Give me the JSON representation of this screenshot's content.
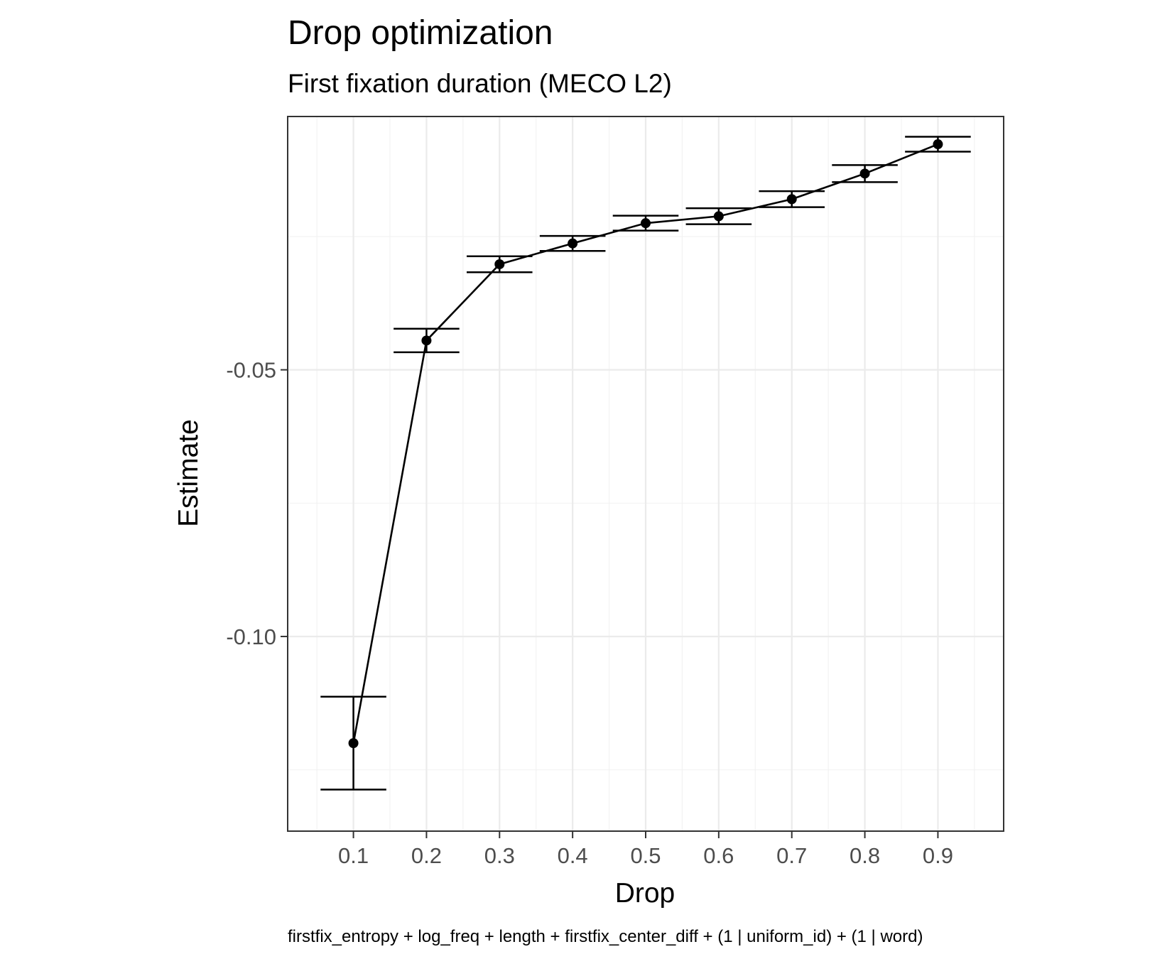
{
  "chart_data": {
    "type": "line",
    "title": "Drop optimization",
    "subtitle": "First fixation duration (MECO L2)",
    "xlabel": "Drop",
    "ylabel": "Estimate",
    "caption": "firstfix_entropy + log_freq + length + firstfix_center_diff + (1 | uniform_id) + (1 | word)",
    "x": [
      0.1,
      0.2,
      0.3,
      0.4,
      0.5,
      0.6,
      0.7,
      0.8,
      0.9
    ],
    "x_tick_labels": [
      "0.1",
      "0.2",
      "0.3",
      "0.4",
      "0.5",
      "0.6",
      "0.7",
      "0.8",
      "0.9"
    ],
    "series": [
      {
        "values": [
          -0.12,
          -0.0445,
          -0.0302,
          -0.0263,
          -0.0225,
          -0.0212,
          -0.018,
          -0.0132,
          -0.0077
        ],
        "ci_lower": [
          -0.1287,
          -0.0467,
          -0.0317,
          -0.0277,
          -0.0239,
          -0.0227,
          -0.0195,
          -0.0148,
          -0.0091
        ],
        "ci_upper": [
          -0.1113,
          -0.0423,
          -0.0287,
          -0.0249,
          -0.0211,
          -0.0197,
          -0.0165,
          -0.0116,
          -0.0063
        ]
      }
    ],
    "y_ticks": [
      -0.05,
      -0.1
    ],
    "y_tick_labels": [
      "-0.05",
      "-0.10"
    ],
    "xlim": [
      0.01,
      0.99
    ],
    "ylim": [
      -0.1365,
      -0.0025
    ],
    "grid": true,
    "theme": "bw",
    "colors": {
      "line": "#000000",
      "grid_major": "#ebebeb",
      "grid_minor": "#f2f2f2",
      "panel_border": "#333333",
      "tick_text": "#4d4d4d"
    }
  }
}
